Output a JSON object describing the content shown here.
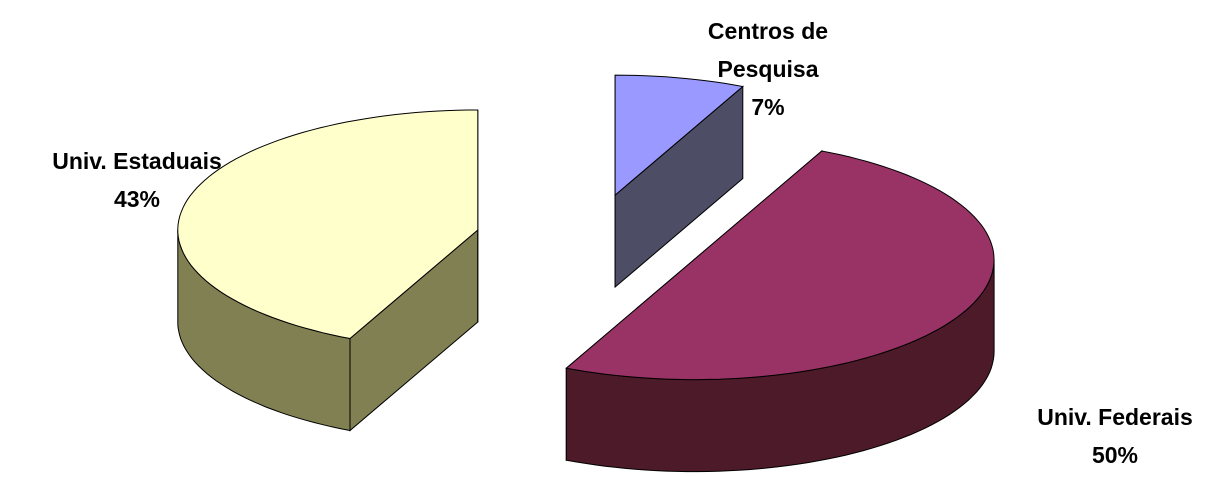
{
  "chart_data": {
    "type": "pie",
    "categories": [
      "Centros de Pesquisa",
      "Univ. Federais",
      "Univ. Estaduais"
    ],
    "values": [
      7,
      50,
      43
    ],
    "value_labels": [
      "7%",
      "50%",
      "43%"
    ],
    "colors": [
      "#9999ff",
      "#993366",
      "#ffffcc"
    ]
  }
}
